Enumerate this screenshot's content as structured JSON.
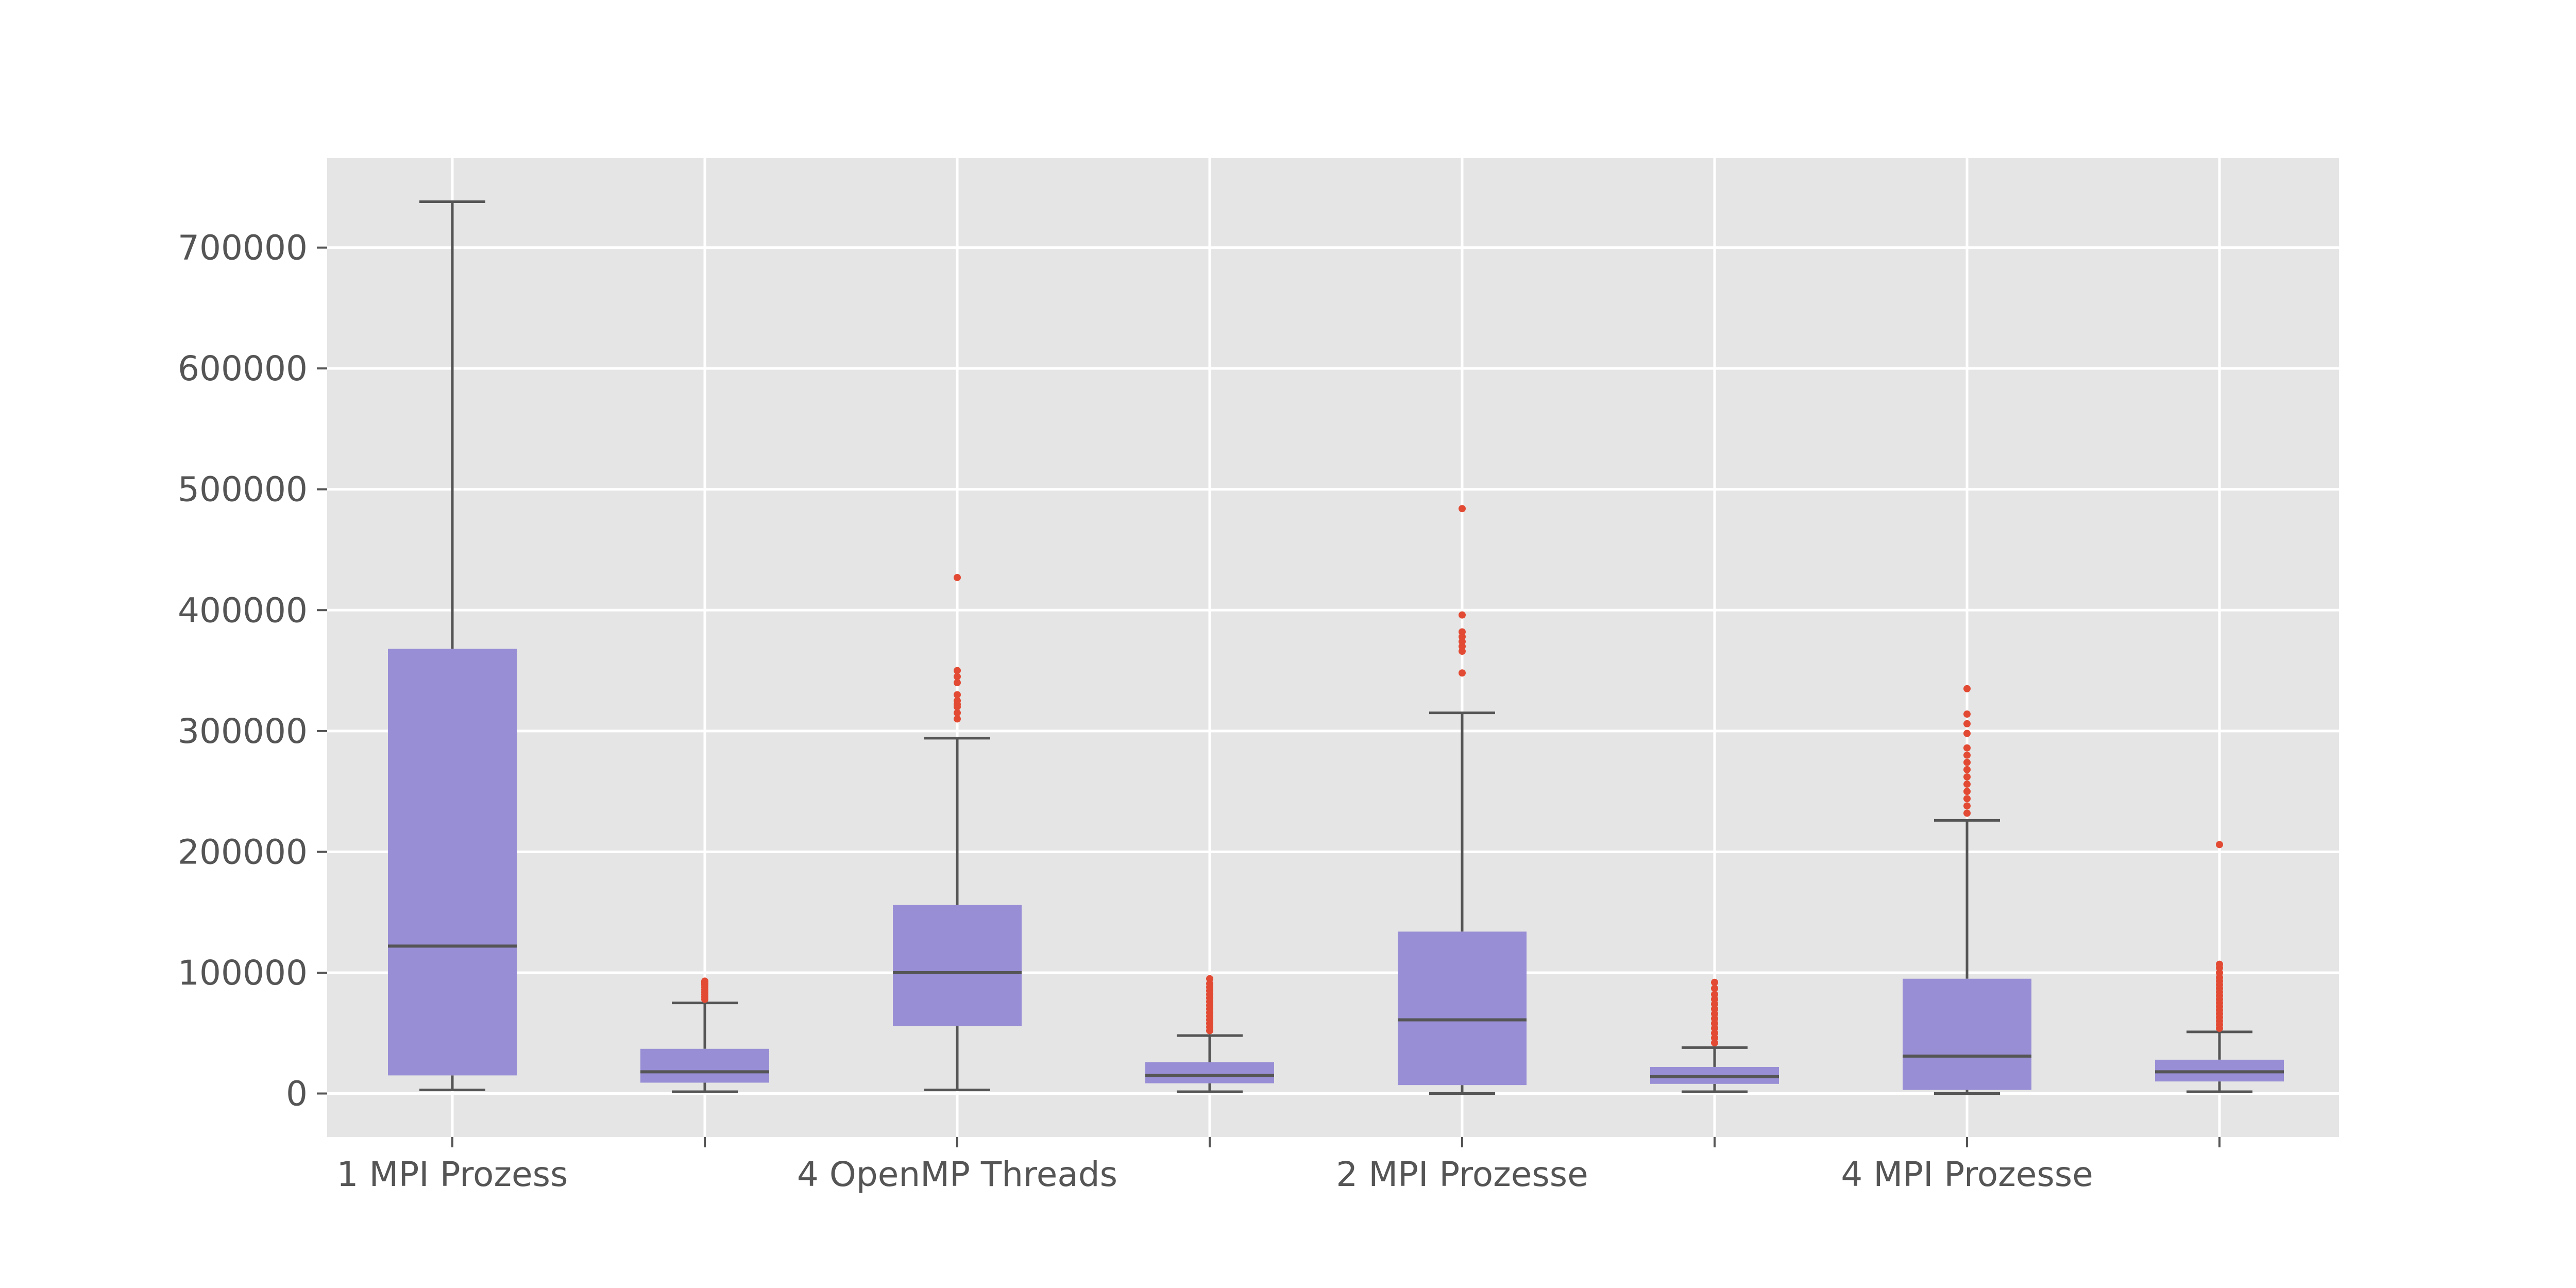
{
  "chart_data": {
    "type": "boxplot",
    "title": "",
    "xlabel": "",
    "ylabel": "",
    "ylim": [
      -36000,
      774000
    ],
    "grid": true,
    "yticks": [
      0,
      100000,
      200000,
      300000,
      400000,
      500000,
      600000,
      700000
    ],
    "ytick_labels": [
      "0",
      "100000",
      "200000",
      "300000",
      "400000",
      "500000",
      "600000",
      "700000"
    ],
    "categories": [
      "1 MPI Prozess",
      "",
      "4 OpenMP Threads",
      "",
      "2 MPI Prozesse",
      "",
      "4 MPI Prozesse",
      ""
    ],
    "boxes": [
      {
        "whislo": 3000,
        "q1": 15000,
        "med": 122000,
        "q3": 368000,
        "whishi": 738000,
        "fliers": []
      },
      {
        "whislo": 1500,
        "q1": 9000,
        "med": 18000,
        "q3": 37000,
        "whishi": 75000,
        "fliers": [
          78000,
          80000,
          82000,
          84000,
          86000,
          88000,
          90000,
          91000,
          92000,
          93000
        ]
      },
      {
        "whislo": 3000,
        "q1": 56000,
        "med": 100000,
        "q3": 156000,
        "whishi": 294000,
        "fliers": [
          310000,
          315000,
          320000,
          322000,
          325000,
          330000,
          340000,
          345000,
          350000,
          427000
        ]
      },
      {
        "whislo": 1500,
        "q1": 8500,
        "med": 15000,
        "q3": 26000,
        "whishi": 48000,
        "fliers": [
          52000,
          55000,
          58000,
          61000,
          64000,
          67000,
          70000,
          73000,
          76000,
          79000,
          82000,
          85000,
          88000,
          91000,
          95000
        ]
      },
      {
        "whislo": 0,
        "q1": 7000,
        "med": 61000,
        "q3": 134000,
        "whishi": 315000,
        "fliers": [
          348000,
          366000,
          370000,
          374000,
          378000,
          382000,
          396000,
          484000
        ]
      },
      {
        "whislo": 1500,
        "q1": 8000,
        "med": 14000,
        "q3": 22000,
        "whishi": 38000,
        "fliers": [
          42000,
          46000,
          50000,
          54000,
          58000,
          62000,
          66000,
          70000,
          74000,
          78000,
          82000,
          87000,
          92000
        ]
      },
      {
        "whislo": 0,
        "q1": 3000,
        "med": 31000,
        "q3": 95000,
        "whishi": 226000,
        "fliers": [
          232000,
          238000,
          244000,
          250000,
          256000,
          262000,
          268000,
          274000,
          280000,
          286000,
          298000,
          306000,
          314000,
          335000
        ]
      },
      {
        "whislo": 1500,
        "q1": 10000,
        "med": 18000,
        "q3": 28000,
        "whishi": 51000,
        "fliers": [
          54000,
          57000,
          60000,
          63000,
          66000,
          69000,
          72000,
          75000,
          78000,
          81000,
          84000,
          87000,
          90000,
          93000,
          96000,
          100000,
          104000,
          107000,
          206000
        ]
      }
    ],
    "colors": {
      "background": "#ffffff",
      "axes_bg": "#e5e5e5",
      "grid": "#ffffff",
      "box_fill": "#988ed5",
      "line": "#555555",
      "flier": "#e24a33",
      "tick_text": "#555555"
    }
  }
}
